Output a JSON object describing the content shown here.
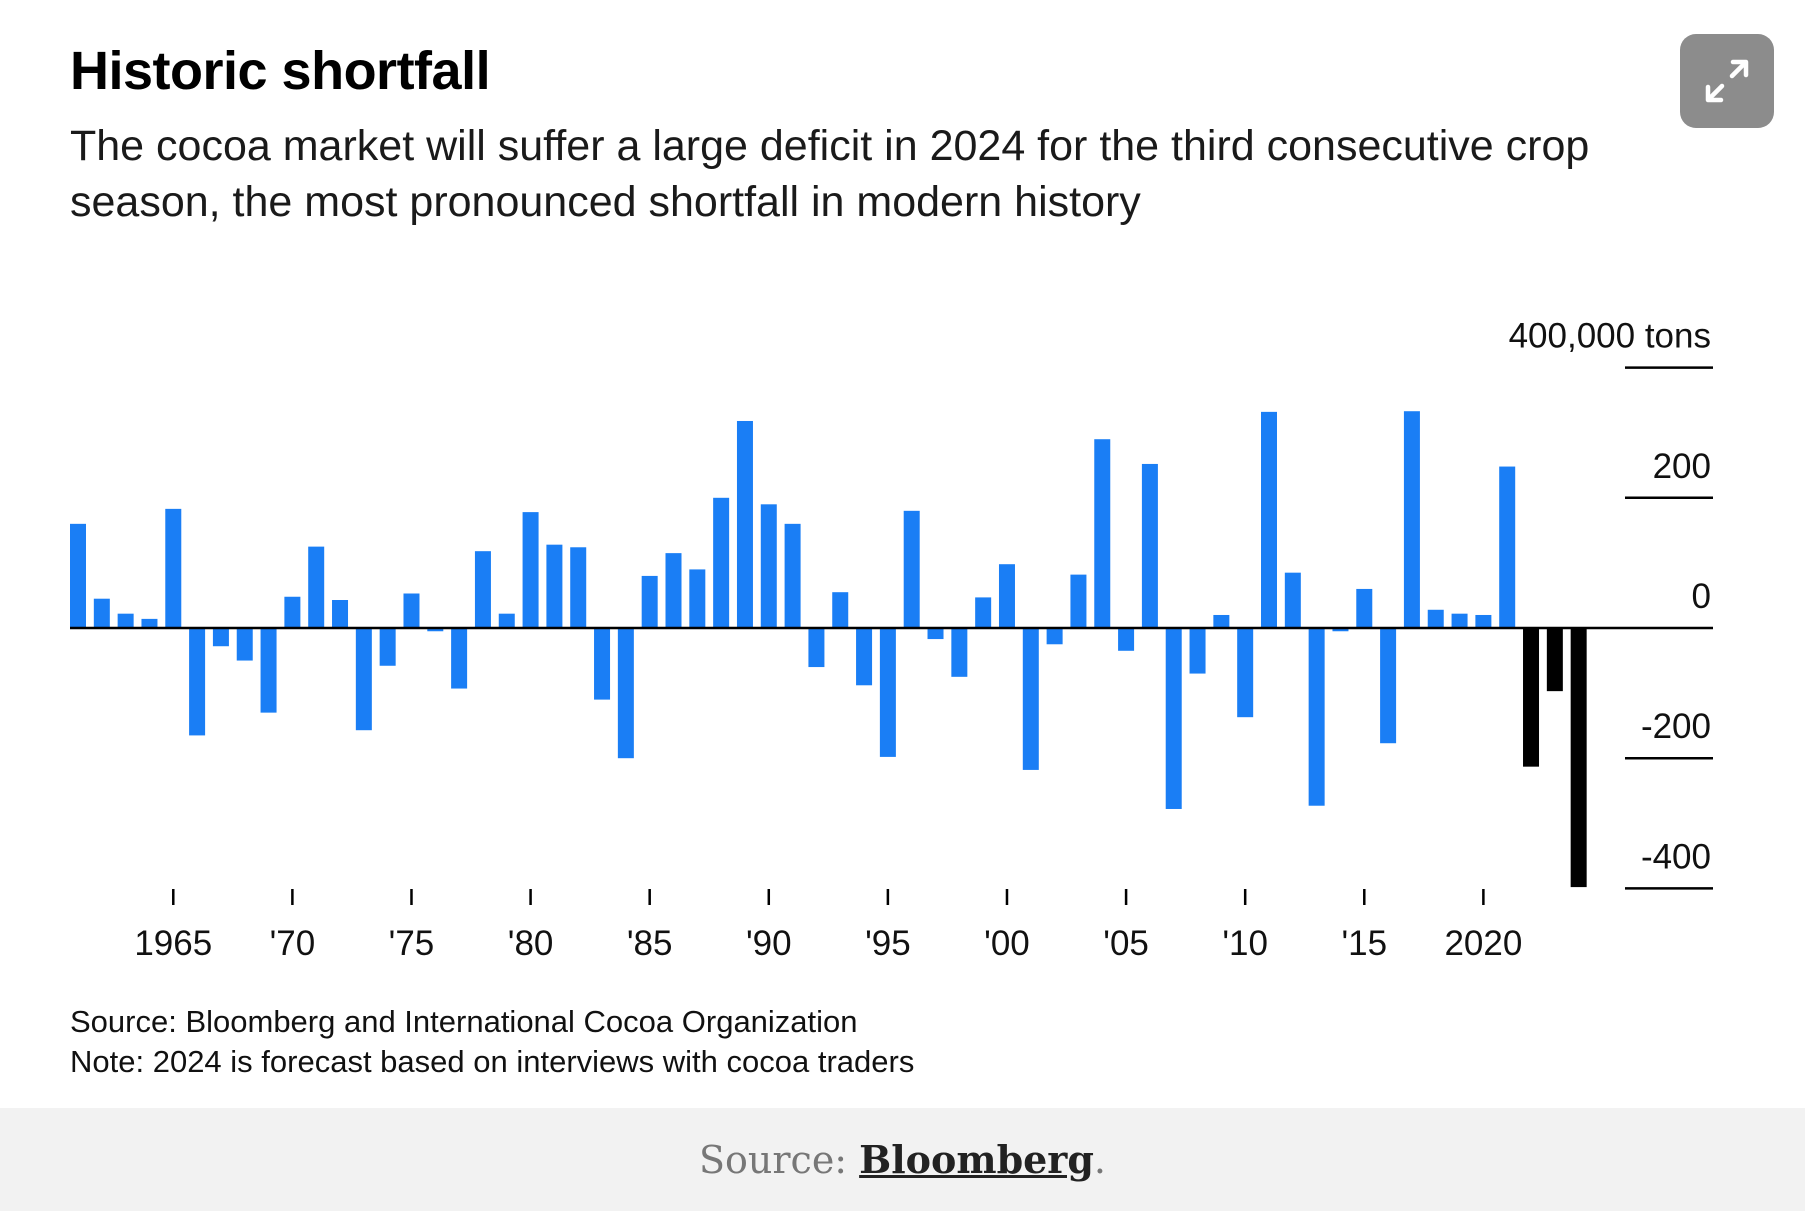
{
  "title": "Historic shortfall",
  "subtitle": "The cocoa market will suffer a large deficit in 2024 for the third consecutive crop season, the most pronounced shortfall in modern history",
  "expand_icon": "expand-arrows-icon",
  "source_note": "Source: Bloomberg and International Cocoa Organization",
  "forecast_note": "Note: 2024 is forecast based on interviews with cocoa traders",
  "footer": {
    "prefix": "Source:",
    "link": "Bloomberg",
    "suffix": "."
  },
  "colors": {
    "positive": "#1a7ef5",
    "deficit_recent": "#000000",
    "background": "#ffffff",
    "footer_bg": "#f2f2f2"
  },
  "chart_data": {
    "type": "bar",
    "ylabel_unit": "400,000 tons",
    "y_ticks": [
      400,
      200,
      0,
      -200,
      -400
    ],
    "y_tick_labels": [
      "400,000 tons",
      "200",
      "0",
      "-200",
      "-400"
    ],
    "x_ticks": [
      1965,
      1970,
      1975,
      1980,
      1985,
      1990,
      1995,
      2000,
      2005,
      2010,
      2015,
      2020
    ],
    "x_tick_labels": [
      "1965",
      "'70",
      "'75",
      "'80",
      "'85",
      "'90",
      "'95",
      "'00",
      "'05",
      "'10",
      "'15",
      "2020"
    ],
    "ylim": [
      -400,
      400
    ],
    "grid": false,
    "legend": "none",
    "categories": [
      1961,
      1962,
      1963,
      1964,
      1965,
      1966,
      1967,
      1968,
      1969,
      1970,
      1971,
      1972,
      1973,
      1974,
      1975,
      1976,
      1977,
      1978,
      1979,
      1980,
      1981,
      1982,
      1983,
      1984,
      1985,
      1986,
      1987,
      1988,
      1989,
      1990,
      1991,
      1992,
      1993,
      1994,
      1995,
      1996,
      1997,
      1998,
      1999,
      2000,
      2001,
      2002,
      2003,
      2004,
      2005,
      2006,
      2007,
      2008,
      2009,
      2010,
      2011,
      2012,
      2013,
      2014,
      2015,
      2016,
      2017,
      2018,
      2019,
      2020,
      2021,
      2022,
      2023,
      2024
    ],
    "values": [
      160,
      45,
      22,
      14,
      183,
      -165,
      -28,
      -50,
      -130,
      48,
      125,
      43,
      -157,
      -58,
      53,
      -5,
      -93,
      118,
      22,
      178,
      128,
      124,
      -110,
      -200,
      80,
      115,
      90,
      200,
      318,
      190,
      160,
      -60,
      55,
      -88,
      -198,
      180,
      -17,
      -75,
      47,
      98,
      -218,
      -25,
      82,
      290,
      -35,
      252,
      -278,
      -70,
      20,
      -137,
      332,
      85,
      -273,
      -5,
      60,
      -177,
      333,
      28,
      22,
      20,
      248,
      -213,
      -97,
      -398
    ],
    "forecast_or_recent_from": 2022
  }
}
